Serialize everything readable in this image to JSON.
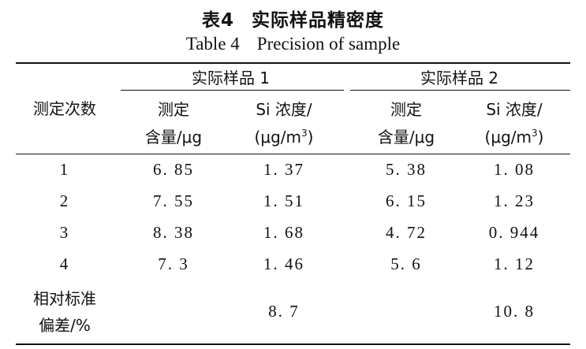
{
  "caption": {
    "cn_label": "表4",
    "cn_title": "实际样品精密度",
    "en_label": "Table 4",
    "en_title": "Precision of sample"
  },
  "header": {
    "row_label": "测定次数",
    "groups": [
      "实际样品 1",
      "实际样品 2"
    ],
    "col_content_line1": "测定",
    "col_content_line2": "含量/μg",
    "col_conc_line1": "Si 浓度/",
    "col_conc_line2_prefix": "(μg/m",
    "col_conc_sup": "3",
    "col_conc_line2_suffix": ")"
  },
  "rows": [
    {
      "n": "1",
      "c1": "6. 85",
      "s1": "1. 37",
      "c2": "5. 38",
      "s2": "1. 08"
    },
    {
      "n": "2",
      "c1": "7. 55",
      "s1": "1. 51",
      "c2": "6. 15",
      "s2": "1. 23"
    },
    {
      "n": "3",
      "c1": "8. 38",
      "s1": "1. 68",
      "c2": "4. 72",
      "s2": "0. 944"
    },
    {
      "n": "4",
      "c1": "7. 3",
      "s1": "1. 46",
      "c2": "5. 6",
      "s2": "1. 12"
    }
  ],
  "rsd": {
    "label_line1": "相对标准",
    "label_line2": "偏差/%",
    "v1": "8. 7",
    "v2": "10. 8"
  }
}
